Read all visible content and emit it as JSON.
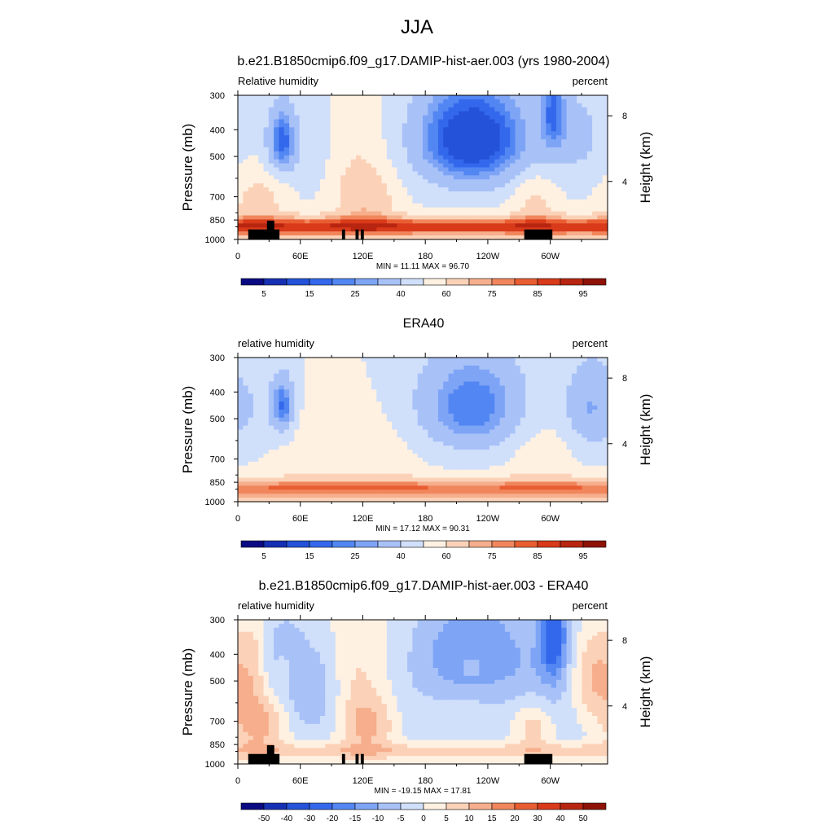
{
  "title": "JJA",
  "colors": {
    "rh_scale": [
      "#0a0a82",
      "#1630b4",
      "#2452d8",
      "#3468ec",
      "#5286f2",
      "#7ea4f6",
      "#a8c2f8",
      "#d0dffa",
      "#fff1e2",
      "#fbd2b8",
      "#f6ae8c",
      "#f1865c",
      "#e95d32",
      "#d83a1a",
      "#b82510",
      "#8e1206"
    ],
    "diff_scale": [
      "#0a0a82",
      "#1630b4",
      "#2452d8",
      "#3468ec",
      "#5286f2",
      "#7ea4f6",
      "#a8c2f8",
      "#d0dffa",
      "#fff1e2",
      "#fbd2b8",
      "#f6ae8c",
      "#f1865c",
      "#e95d32",
      "#d83a1a",
      "#b82510",
      "#8e1206"
    ],
    "topography": "#000000"
  },
  "axes": {
    "ylabel": "Pressure (mb)",
    "ylabel_right": "Height (km)",
    "pressure_ticks": [
      "300",
      "400",
      "500",
      "700",
      "850",
      "1000"
    ],
    "height_ticks": [
      "8",
      "4"
    ],
    "lon_ticks": [
      "0",
      "60E",
      "120E",
      "180",
      "120W",
      "60W"
    ]
  },
  "chart_data": [
    {
      "type": "heatmap",
      "title": "b.e21.B1850cmip6.f09_g17.DAMIP-hist-aer.003 (yrs 1980-2004)",
      "left_label": "Relative humidity",
      "right_label": "percent",
      "stats": "MIN =  11.11  MAX =  96.70",
      "min": 11.11,
      "max": 96.7,
      "colorbar_labels": [
        "5",
        "15",
        "25",
        "40",
        "60",
        "75",
        "85",
        "95"
      ],
      "xlabel": "",
      "ylabel": "Pressure (mb)",
      "xlim": [
        0,
        350
      ],
      "ylim": [
        1000,
        300
      ],
      "pattern": "model"
    },
    {
      "type": "heatmap",
      "title": "ERA40",
      "left_label": "relative humidity",
      "right_label": "percent",
      "stats": "MIN =  17.12  MAX =  90.31",
      "min": 17.12,
      "max": 90.31,
      "colorbar_labels": [
        "5",
        "15",
        "25",
        "40",
        "60",
        "75",
        "85",
        "95"
      ],
      "xlabel": "",
      "ylabel": "Pressure (mb)",
      "xlim": [
        0,
        350
      ],
      "ylim": [
        1000,
        300
      ],
      "pattern": "obs"
    },
    {
      "type": "heatmap",
      "title": "b.e21.B1850cmip6.f09_g17.DAMIP-hist-aer.003 - ERA40",
      "left_label": "relative humidity",
      "right_label": "percent",
      "stats": "MIN = -19.15  MAX =  17.81",
      "min": -19.15,
      "max": 17.81,
      "colorbar_labels": [
        "-50",
        "-40",
        "-30",
        "-20",
        "-15",
        "-10",
        "-5",
        "0",
        "5",
        "10",
        "15",
        "20",
        "30",
        "40",
        "50"
      ],
      "xlabel": "",
      "ylabel": "Pressure (mb)",
      "xlim": [
        0,
        350
      ],
      "ylim": [
        1000,
        300
      ],
      "pattern": "diff"
    }
  ]
}
